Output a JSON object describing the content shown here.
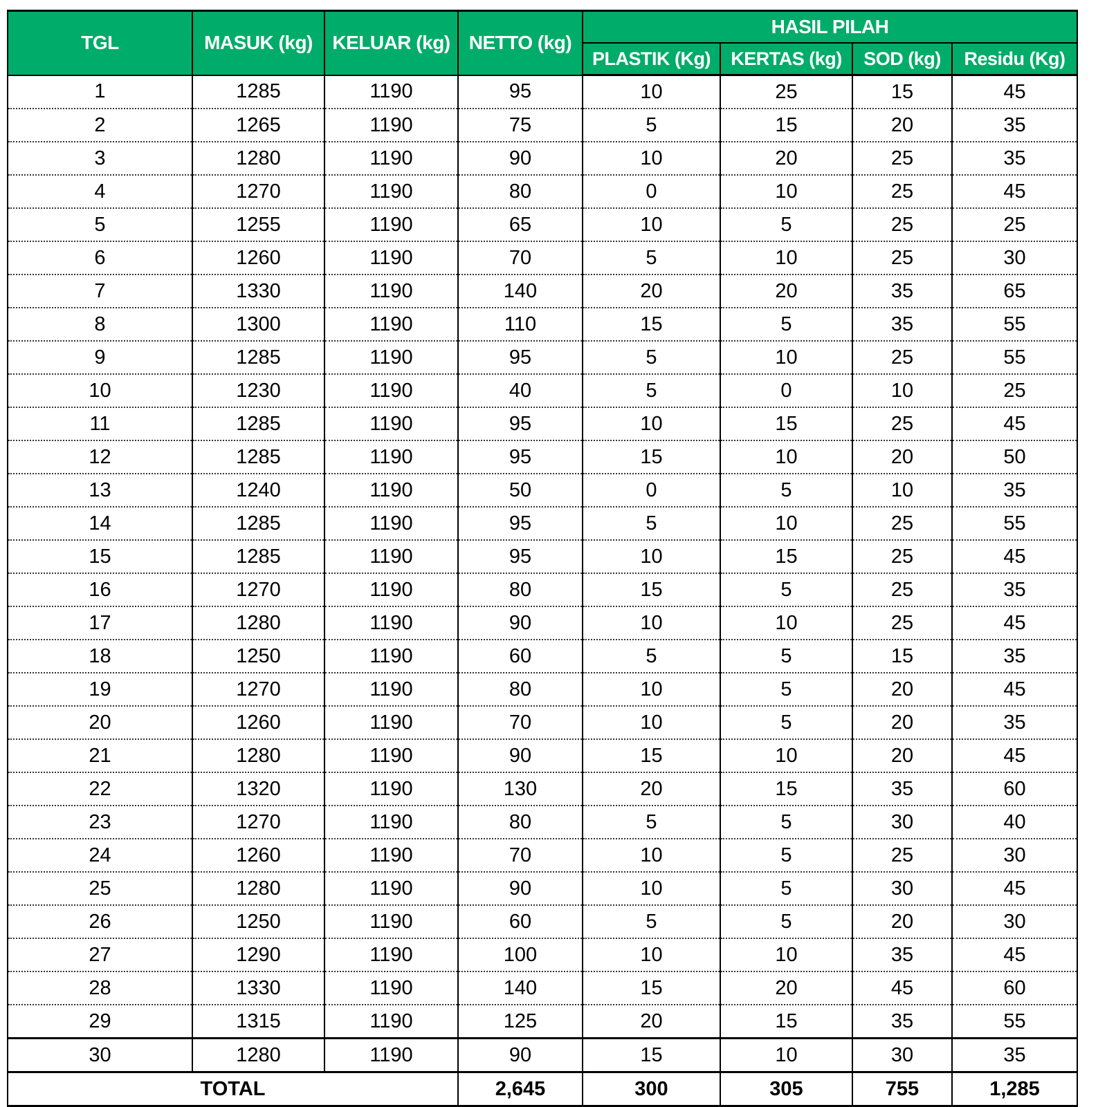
{
  "header": {
    "tgl": "TGL",
    "masuk": "MASUK (kg)",
    "keluar": "KELUAR (kg)",
    "netto": "NETTO (kg)",
    "group": "HASIL PILAH",
    "plastik": "PLASTIK (Kg)",
    "kertas": "KERTAS (kg)",
    "sod": "SOD (kg)",
    "residu": "Residu (Kg)"
  },
  "colors": {
    "header_bg": "#00ac69",
    "header_text": "#ffffff"
  },
  "rows": [
    [
      "1",
      "1285",
      "1190",
      "95",
      "10",
      "25",
      "15",
      "45"
    ],
    [
      "2",
      "1265",
      "1190",
      "75",
      "5",
      "15",
      "20",
      "35"
    ],
    [
      "3",
      "1280",
      "1190",
      "90",
      "10",
      "20",
      "25",
      "35"
    ],
    [
      "4",
      "1270",
      "1190",
      "80",
      "0",
      "10",
      "25",
      "45"
    ],
    [
      "5",
      "1255",
      "1190",
      "65",
      "10",
      "5",
      "25",
      "25"
    ],
    [
      "6",
      "1260",
      "1190",
      "70",
      "5",
      "10",
      "25",
      "30"
    ],
    [
      "7",
      "1330",
      "1190",
      "140",
      "20",
      "20",
      "35",
      "65"
    ],
    [
      "8",
      "1300",
      "1190",
      "110",
      "15",
      "5",
      "35",
      "55"
    ],
    [
      "9",
      "1285",
      "1190",
      "95",
      "5",
      "10",
      "25",
      "55"
    ],
    [
      "10",
      "1230",
      "1190",
      "40",
      "5",
      "0",
      "10",
      "25"
    ],
    [
      "11",
      "1285",
      "1190",
      "95",
      "10",
      "15",
      "25",
      "45"
    ],
    [
      "12",
      "1285",
      "1190",
      "95",
      "15",
      "10",
      "20",
      "50"
    ],
    [
      "13",
      "1240",
      "1190",
      "50",
      "0",
      "5",
      "10",
      "35"
    ],
    [
      "14",
      "1285",
      "1190",
      "95",
      "5",
      "10",
      "25",
      "55"
    ],
    [
      "15",
      "1285",
      "1190",
      "95",
      "10",
      "15",
      "25",
      "45"
    ],
    [
      "16",
      "1270",
      "1190",
      "80",
      "15",
      "5",
      "25",
      "35"
    ],
    [
      "17",
      "1280",
      "1190",
      "90",
      "10",
      "10",
      "25",
      "45"
    ],
    [
      "18",
      "1250",
      "1190",
      "60",
      "5",
      "5",
      "15",
      "35"
    ],
    [
      "19",
      "1270",
      "1190",
      "80",
      "10",
      "5",
      "20",
      "45"
    ],
    [
      "20",
      "1260",
      "1190",
      "70",
      "10",
      "5",
      "20",
      "35"
    ],
    [
      "21",
      "1280",
      "1190",
      "90",
      "15",
      "10",
      "20",
      "45"
    ],
    [
      "22",
      "1320",
      "1190",
      "130",
      "20",
      "15",
      "35",
      "60"
    ],
    [
      "23",
      "1270",
      "1190",
      "80",
      "5",
      "5",
      "30",
      "40"
    ],
    [
      "24",
      "1260",
      "1190",
      "70",
      "10",
      "5",
      "25",
      "30"
    ],
    [
      "25",
      "1280",
      "1190",
      "90",
      "10",
      "5",
      "30",
      "45"
    ],
    [
      "26",
      "1250",
      "1190",
      "60",
      "5",
      "5",
      "20",
      "30"
    ],
    [
      "27",
      "1290",
      "1190",
      "100",
      "10",
      "10",
      "35",
      "45"
    ],
    [
      "28",
      "1330",
      "1190",
      "140",
      "15",
      "20",
      "45",
      "60"
    ],
    [
      "29",
      "1315",
      "1190",
      "125",
      "20",
      "15",
      "35",
      "55"
    ],
    [
      "30",
      "1280",
      "1190",
      "90",
      "15",
      "10",
      "30",
      "35"
    ]
  ],
  "total": {
    "label": "TOTAL",
    "netto": "2,645",
    "plastik": "300",
    "kertas": "305",
    "sod": "755",
    "residu": "1,285"
  }
}
